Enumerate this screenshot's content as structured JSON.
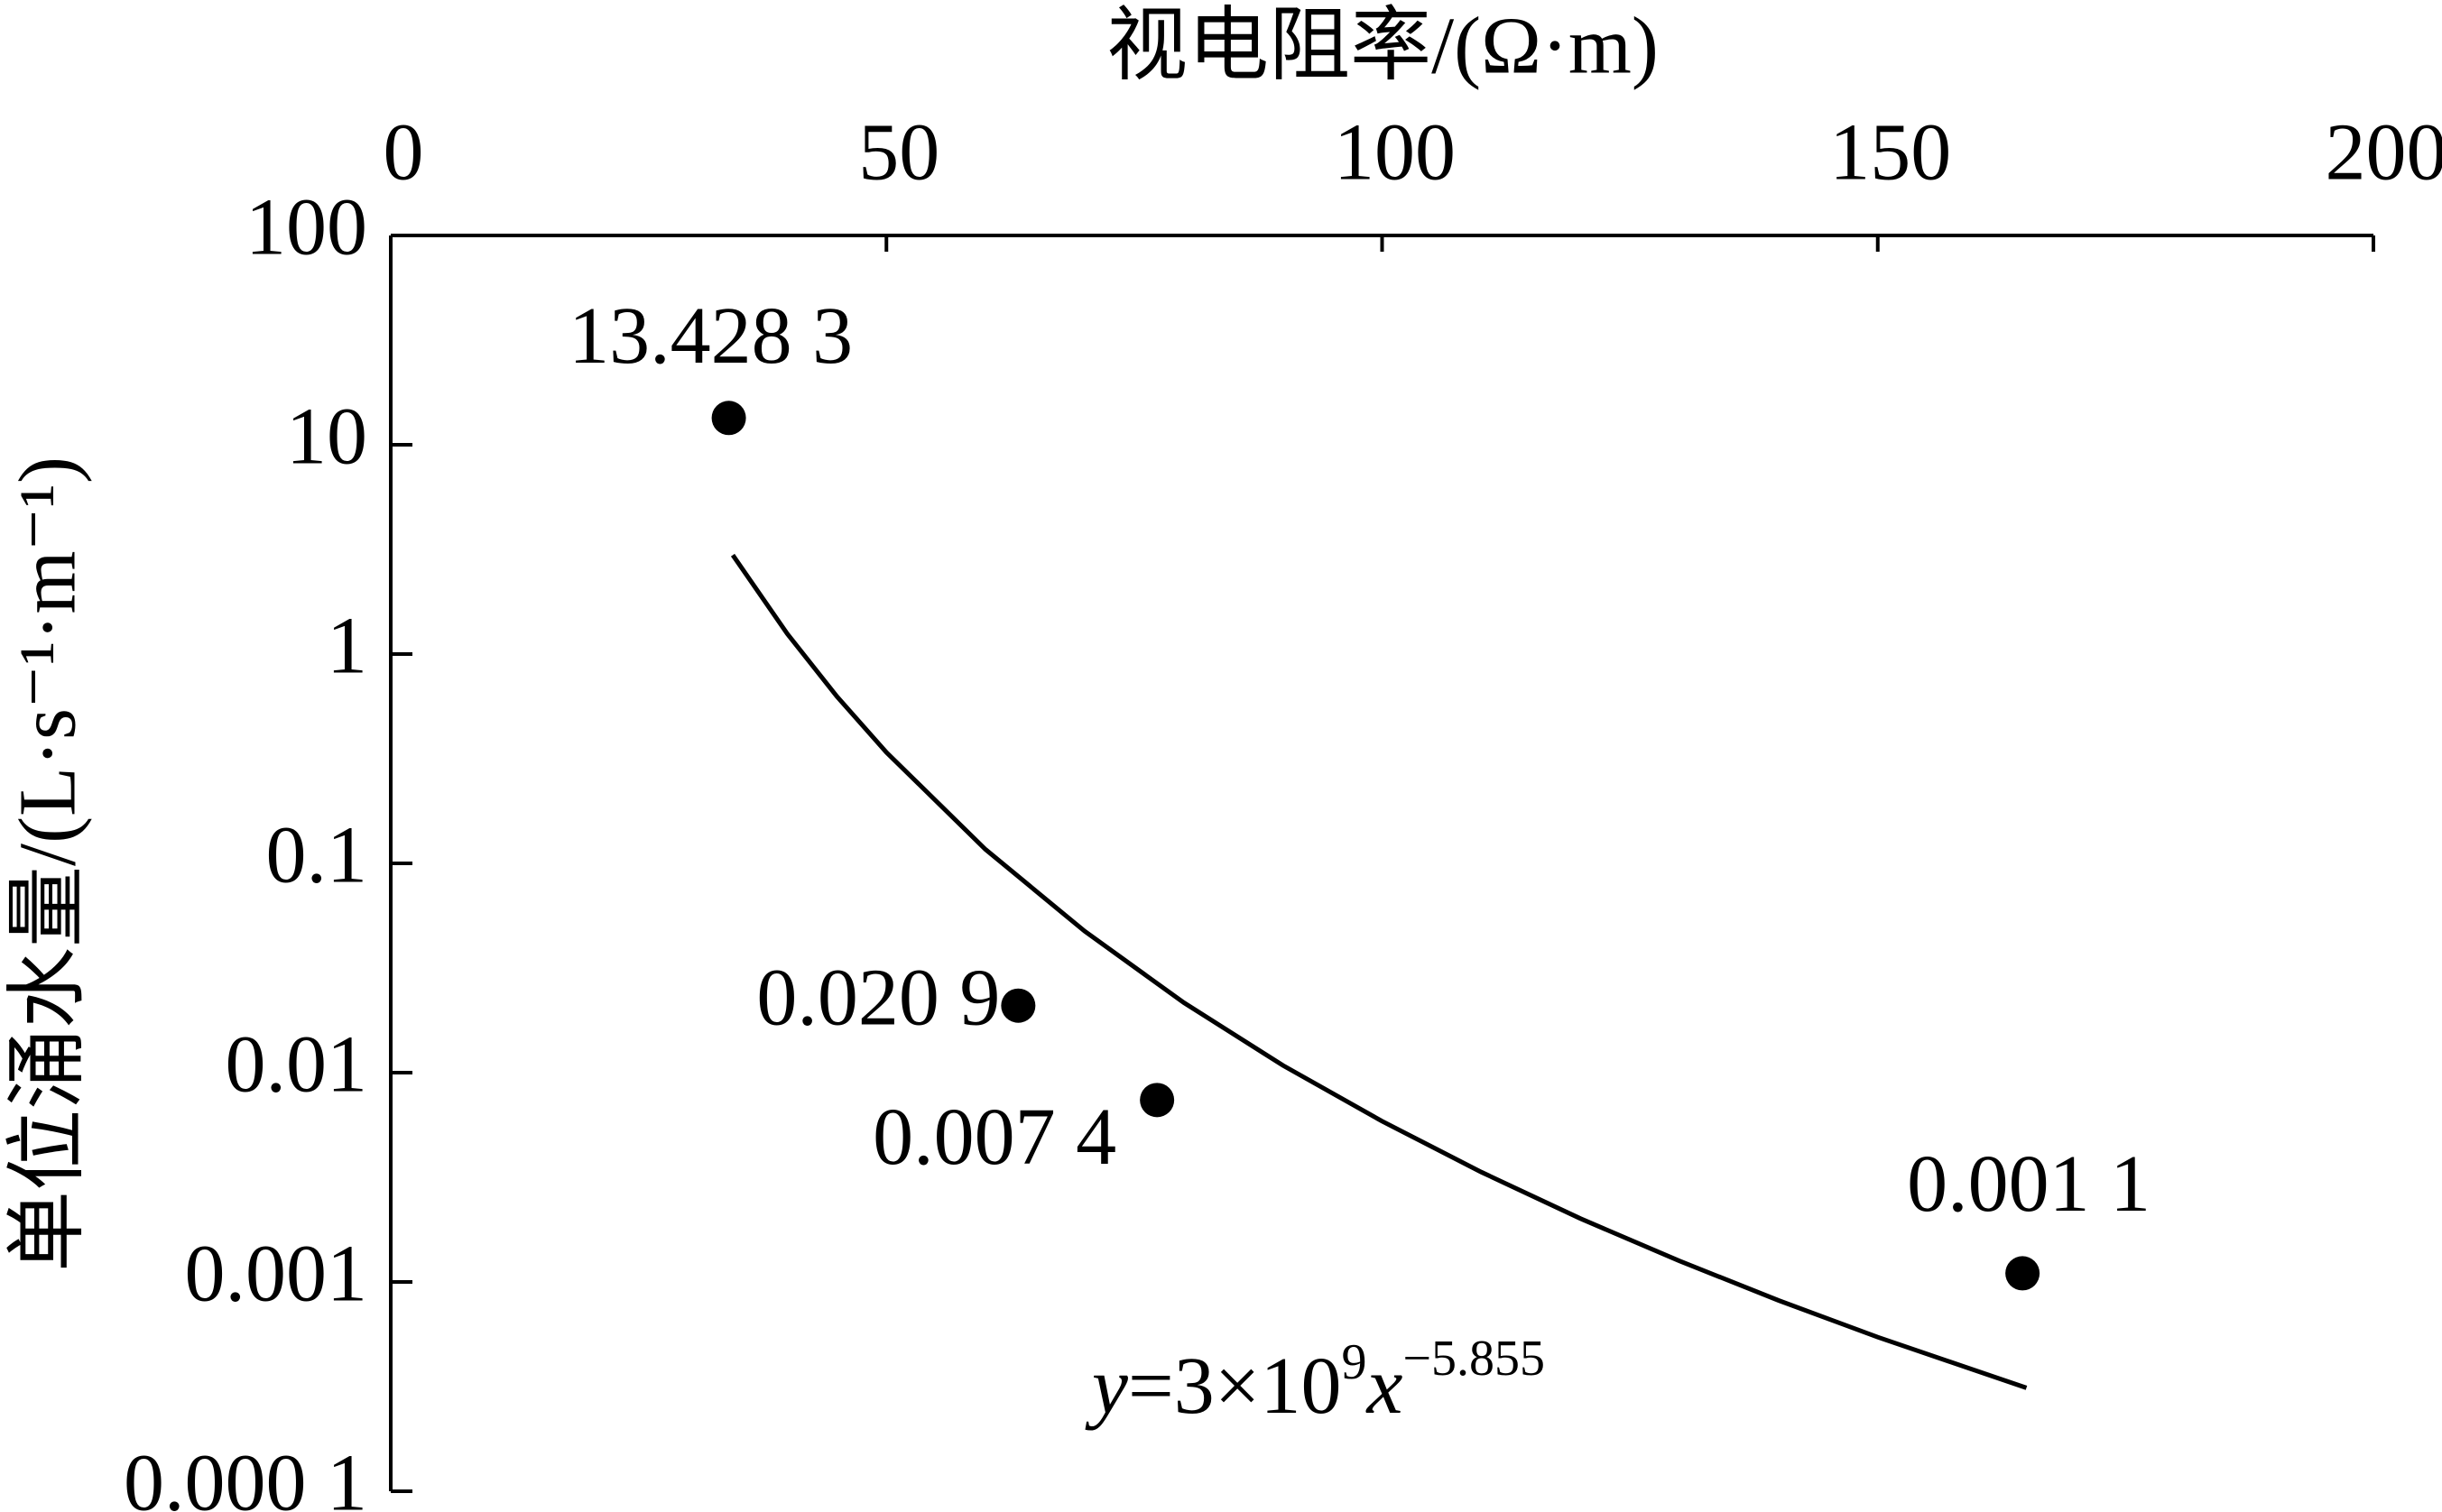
{
  "chart_data": {
    "type": "scatter",
    "x_label": "视电阻率/(Ω·m)",
    "y_label": "单位涌水量/(L·s⁻¹·m⁻¹)",
    "x": [
      34.1,
      63.3,
      77.3,
      164.6
    ],
    "values": [
      13.4283,
      0.0209,
      0.0074,
      0.0011
    ],
    "value_labels": [
      "13.428 3",
      "0.020 9",
      "0.007 4",
      "0.001 1"
    ],
    "color": "#000000",
    "xlim": [
      0,
      200
    ],
    "xticks": [
      0,
      50,
      100,
      150,
      200
    ],
    "x_axis_position": "top",
    "ylim": [
      0.0001,
      100
    ],
    "y_scale": "log",
    "yticks": [
      100,
      10,
      1,
      0.1,
      0.01,
      0.001,
      {
        "value": 0.0001,
        "label": "0.000 1"
      }
    ],
    "fit": {
      "x": [
        34.5,
        40,
        45,
        50,
        60,
        70,
        80,
        90,
        100,
        110,
        120,
        130,
        140,
        150,
        165
      ],
      "values": [
        2.97,
        1.25,
        0.628,
        0.339,
        0.1165,
        0.0474,
        0.0216,
        0.01083,
        0.00586,
        0.00335,
        0.00201,
        0.00126,
        0.000816,
        0.000545,
        0.000312
      ]
    },
    "equation": {
      "y": "y",
      "coef": "=3×10",
      "power": "9",
      "x": "x",
      "exponent": "−5.855"
    }
  }
}
